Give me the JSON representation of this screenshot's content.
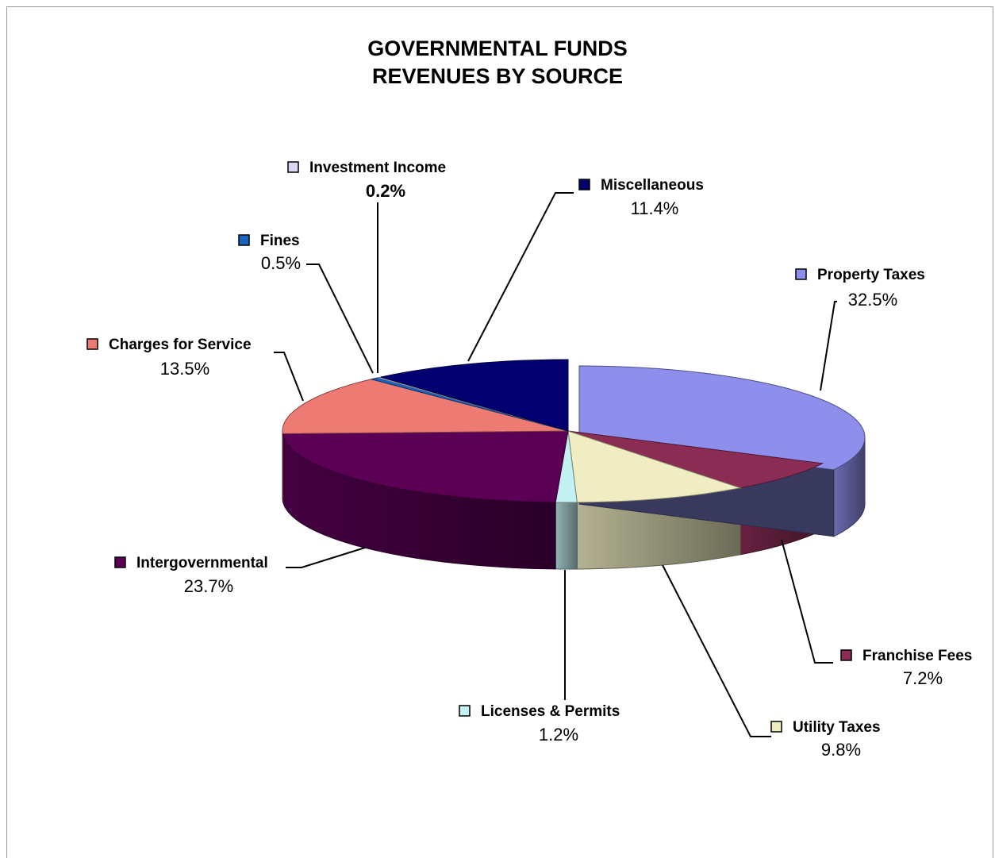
{
  "chart_data": {
    "type": "pie",
    "title": "GOVERNMENTAL FUNDS",
    "subtitle": "REVENUES BY SOURCE",
    "slices": [
      {
        "name": "Property Taxes",
        "value": 32.5,
        "label": "32.5%",
        "color": "#8e8eec",
        "legend": true
      },
      {
        "name": "Franchise Fees",
        "value": 7.2,
        "label": "7.2%",
        "color": "#8b2c55",
        "legend": true
      },
      {
        "name": "Utility Taxes",
        "value": 9.8,
        "label": "9.8%",
        "color": "#efedc1",
        "legend": true
      },
      {
        "name": "Licenses & Permits",
        "value": 1.2,
        "label": "1.2%",
        "color": "#c4f1f1",
        "legend": true
      },
      {
        "name": "Intergovernmental",
        "value": 23.7,
        "label": "23.7%",
        "color": "#5c0056",
        "legend": true
      },
      {
        "name": "Charges for Service",
        "value": 13.5,
        "label": "13.5%",
        "color": "#ee7a74",
        "legend": true
      },
      {
        "name": "Fines",
        "value": 0.5,
        "label": "0.5%",
        "color": "#1863bd",
        "legend": true
      },
      {
        "name": "Investment Income",
        "value": 0.2,
        "label": "0.2%",
        "color": "#d8d8f6",
        "legend": true
      },
      {
        "name": "Miscellaneous",
        "value": 11.4,
        "label": "11.4%",
        "color": "#020070",
        "legend": true
      }
    ],
    "style": "3d-exploded-pie",
    "exploded_slice": "Property Taxes",
    "legend_placement": "labels beside slices with leader lines"
  }
}
